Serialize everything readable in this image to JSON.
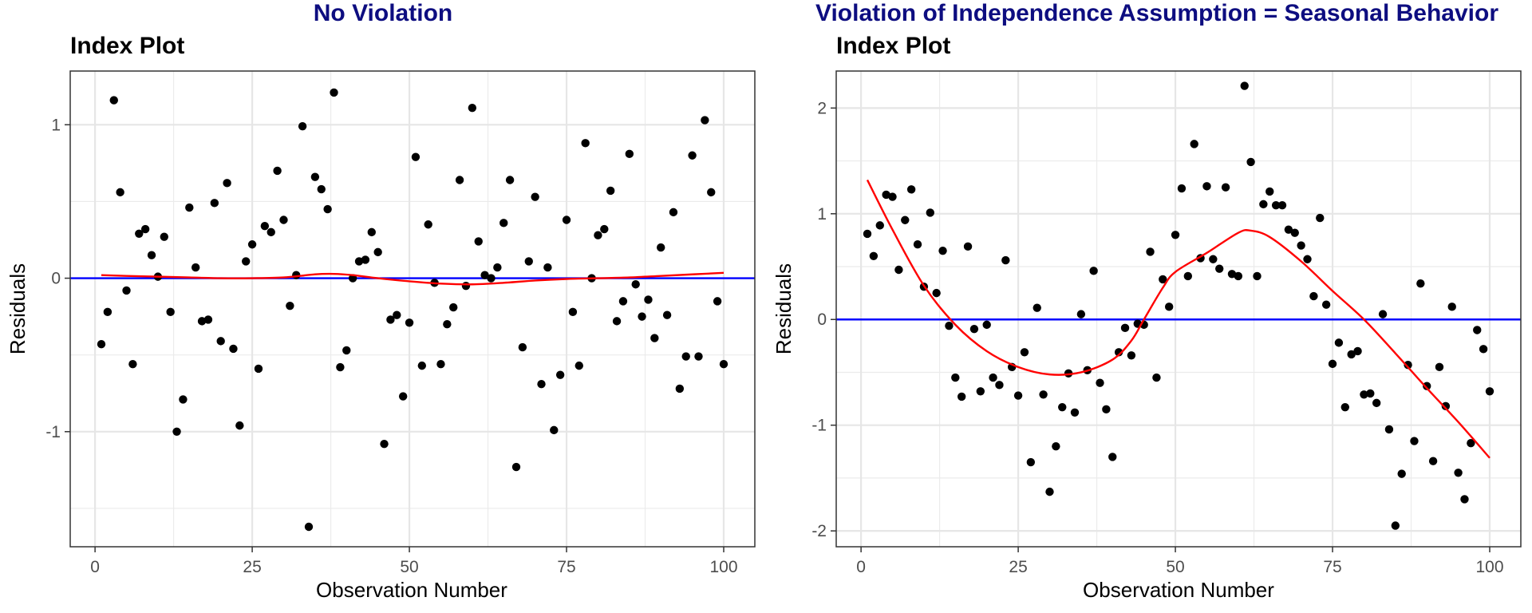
{
  "chart_data": [
    {
      "type": "scatter",
      "suptitle": "No Violation",
      "title": "Index Plot",
      "xlabel": "Observation Number",
      "ylabel": "Residuals",
      "xlim": [
        -3.95,
        104.95
      ],
      "ylim": [
        -1.75,
        1.35
      ],
      "xticks": [
        0,
        25,
        50,
        75,
        100
      ],
      "yticks": [
        -1,
        0,
        1
      ],
      "grid": true,
      "colors": {
        "points": "#000000",
        "smooth": "#ff0000",
        "reference": "#0000ff",
        "suptitle": "#0d0d80"
      },
      "reference_line": 0,
      "series": [
        {
          "kind": "points",
          "x": [
            1,
            2,
            3,
            4,
            5,
            6,
            7,
            8,
            9,
            10,
            11,
            12,
            13,
            14,
            15,
            16,
            17,
            18,
            19,
            20,
            21,
            22,
            23,
            24,
            25,
            26,
            27,
            28,
            29,
            30,
            31,
            32,
            33,
            34,
            35,
            36,
            37,
            38,
            39,
            40,
            41,
            42,
            43,
            44,
            45,
            46,
            47,
            48,
            49,
            50,
            51,
            52,
            53,
            54,
            55,
            56,
            57,
            58,
            59,
            60,
            61,
            62,
            63,
            64,
            65,
            66,
            67,
            68,
            69,
            70,
            71,
            72,
            73,
            74,
            75,
            76,
            77,
            78,
            79,
            80,
            81,
            82,
            83,
            84,
            85,
            86,
            87,
            88,
            89,
            90,
            91,
            92,
            93,
            94,
            95,
            96,
            97,
            98,
            99,
            100
          ],
          "y": [
            -0.43,
            -0.22,
            1.16,
            0.56,
            -0.08,
            -0.56,
            0.29,
            0.32,
            0.15,
            0.01,
            0.27,
            -0.22,
            -1.0,
            -0.79,
            0.46,
            0.07,
            -0.28,
            -0.27,
            0.49,
            -0.41,
            0.62,
            -0.46,
            -0.96,
            0.11,
            0.22,
            -0.59,
            0.34,
            0.3,
            0.7,
            0.38,
            -0.18,
            0.02,
            0.99,
            -1.62,
            0.66,
            0.58,
            0.45,
            1.21,
            -0.58,
            -0.47,
            0.0,
            0.11,
            0.12,
            0.3,
            0.17,
            -1.08,
            -0.27,
            -0.24,
            -0.77,
            -0.29,
            0.79,
            -0.57,
            0.35,
            -0.03,
            -0.56,
            -0.3,
            -0.19,
            0.64,
            -0.05,
            1.11,
            0.24,
            0.02,
            0.0,
            0.07,
            0.36,
            0.64,
            -1.23,
            -0.45,
            0.11,
            0.53,
            -0.69,
            0.07,
            -0.99,
            -0.63,
            0.38,
            -0.22,
            -0.57,
            0.88,
            0.0,
            0.28,
            0.32,
            0.57,
            -0.28,
            -0.15,
            0.81,
            -0.04,
            -0.25,
            -0.14,
            -0.39,
            0.2,
            -0.24,
            0.43,
            -0.72,
            -0.51,
            0.8,
            -0.51,
            1.03,
            0.56,
            -0.15,
            -0.56
          ]
        },
        {
          "kind": "smooth",
          "x": [
            1,
            5,
            10,
            15,
            20,
            25,
            30,
            35,
            38,
            41,
            45,
            50,
            55,
            60,
            65,
            70,
            75,
            80,
            85,
            90,
            95,
            100
          ],
          "y": [
            0.02,
            0.015,
            0.01,
            0.005,
            0.0,
            0.0,
            0.005,
            0.025,
            0.028,
            0.02,
            0.0,
            -0.02,
            -0.035,
            -0.04,
            -0.03,
            -0.015,
            -0.005,
            0.0,
            0.005,
            0.015,
            0.025,
            0.035
          ]
        }
      ]
    },
    {
      "type": "scatter",
      "suptitle": "Violation of Independence Assumption = Seasonal Behavior",
      "title": "Index Plot",
      "xlabel": "Observation Number",
      "ylabel": "Residuals",
      "xlim": [
        -3.95,
        104.95
      ],
      "ylim": [
        -2.15,
        2.35
      ],
      "xticks": [
        0,
        25,
        50,
        75,
        100
      ],
      "yticks": [
        -2,
        -1,
        0,
        1,
        2
      ],
      "grid": true,
      "colors": {
        "points": "#000000",
        "smooth": "#ff0000",
        "reference": "#0000ff",
        "suptitle": "#0d0d80"
      },
      "reference_line": 0,
      "series": [
        {
          "kind": "points",
          "x": [
            1,
            2,
            3,
            4,
            5,
            6,
            7,
            8,
            9,
            10,
            11,
            12,
            13,
            14,
            15,
            16,
            17,
            18,
            19,
            20,
            21,
            22,
            23,
            24,
            25,
            26,
            27,
            28,
            29,
            30,
            31,
            32,
            33,
            34,
            35,
            36,
            37,
            38,
            39,
            40,
            41,
            42,
            43,
            44,
            45,
            46,
            47,
            48,
            49,
            50,
            51,
            52,
            53,
            54,
            55,
            56,
            57,
            58,
            59,
            60,
            61,
            62,
            63,
            64,
            65,
            66,
            67,
            68,
            69,
            70,
            71,
            72,
            73,
            74,
            75,
            76,
            77,
            78,
            79,
            80,
            81,
            82,
            83,
            84,
            85,
            86,
            87,
            88,
            89,
            90,
            91,
            92,
            93,
            94,
            95,
            96,
            97,
            98,
            99,
            100
          ],
          "y": [
            0.81,
            0.6,
            0.89,
            1.18,
            1.16,
            0.47,
            0.94,
            1.23,
            0.71,
            0.31,
            1.01,
            0.25,
            0.65,
            -0.06,
            -0.55,
            -0.73,
            0.69,
            -0.09,
            -0.68,
            -0.05,
            -0.55,
            -0.62,
            0.56,
            -0.45,
            -0.72,
            -0.31,
            -1.35,
            0.11,
            -0.71,
            -1.63,
            -1.2,
            -0.83,
            -0.51,
            -0.88,
            0.05,
            -0.48,
            0.46,
            -0.6,
            -0.85,
            -1.3,
            -0.31,
            -0.08,
            -0.34,
            -0.04,
            -0.05,
            0.64,
            -0.55,
            0.38,
            0.12,
            0.8,
            1.24,
            0.41,
            1.66,
            0.58,
            1.26,
            0.57,
            0.48,
            1.25,
            0.43,
            0.41,
            2.21,
            1.49,
            0.41,
            1.09,
            1.21,
            1.08,
            1.08,
            0.85,
            0.82,
            0.7,
            0.57,
            0.22,
            0.96,
            0.14,
            -0.42,
            -0.22,
            -0.83,
            -0.33,
            -0.3,
            -0.71,
            -0.7,
            -0.79,
            0.05,
            -1.04,
            -1.95,
            -1.46,
            -0.43,
            -1.15,
            0.34,
            -0.63,
            -1.34,
            -0.45,
            -0.82,
            0.12,
            -1.45,
            -1.7,
            -1.17,
            -0.1,
            -0.28,
            -0.68
          ]
        },
        {
          "kind": "smooth",
          "x": [
            1,
            5,
            10,
            15,
            20,
            25,
            30,
            35,
            40,
            43,
            45,
            48,
            50,
            55,
            60,
            62,
            65,
            70,
            75,
            80,
            85,
            90,
            95,
            100
          ],
          "y": [
            1.32,
            0.85,
            0.32,
            -0.05,
            -0.3,
            -0.45,
            -0.52,
            -0.5,
            -0.38,
            -0.2,
            0.0,
            0.3,
            0.45,
            0.63,
            0.82,
            0.84,
            0.78,
            0.55,
            0.27,
            0.0,
            -0.32,
            -0.65,
            -0.97,
            -1.31
          ]
        }
      ]
    }
  ]
}
